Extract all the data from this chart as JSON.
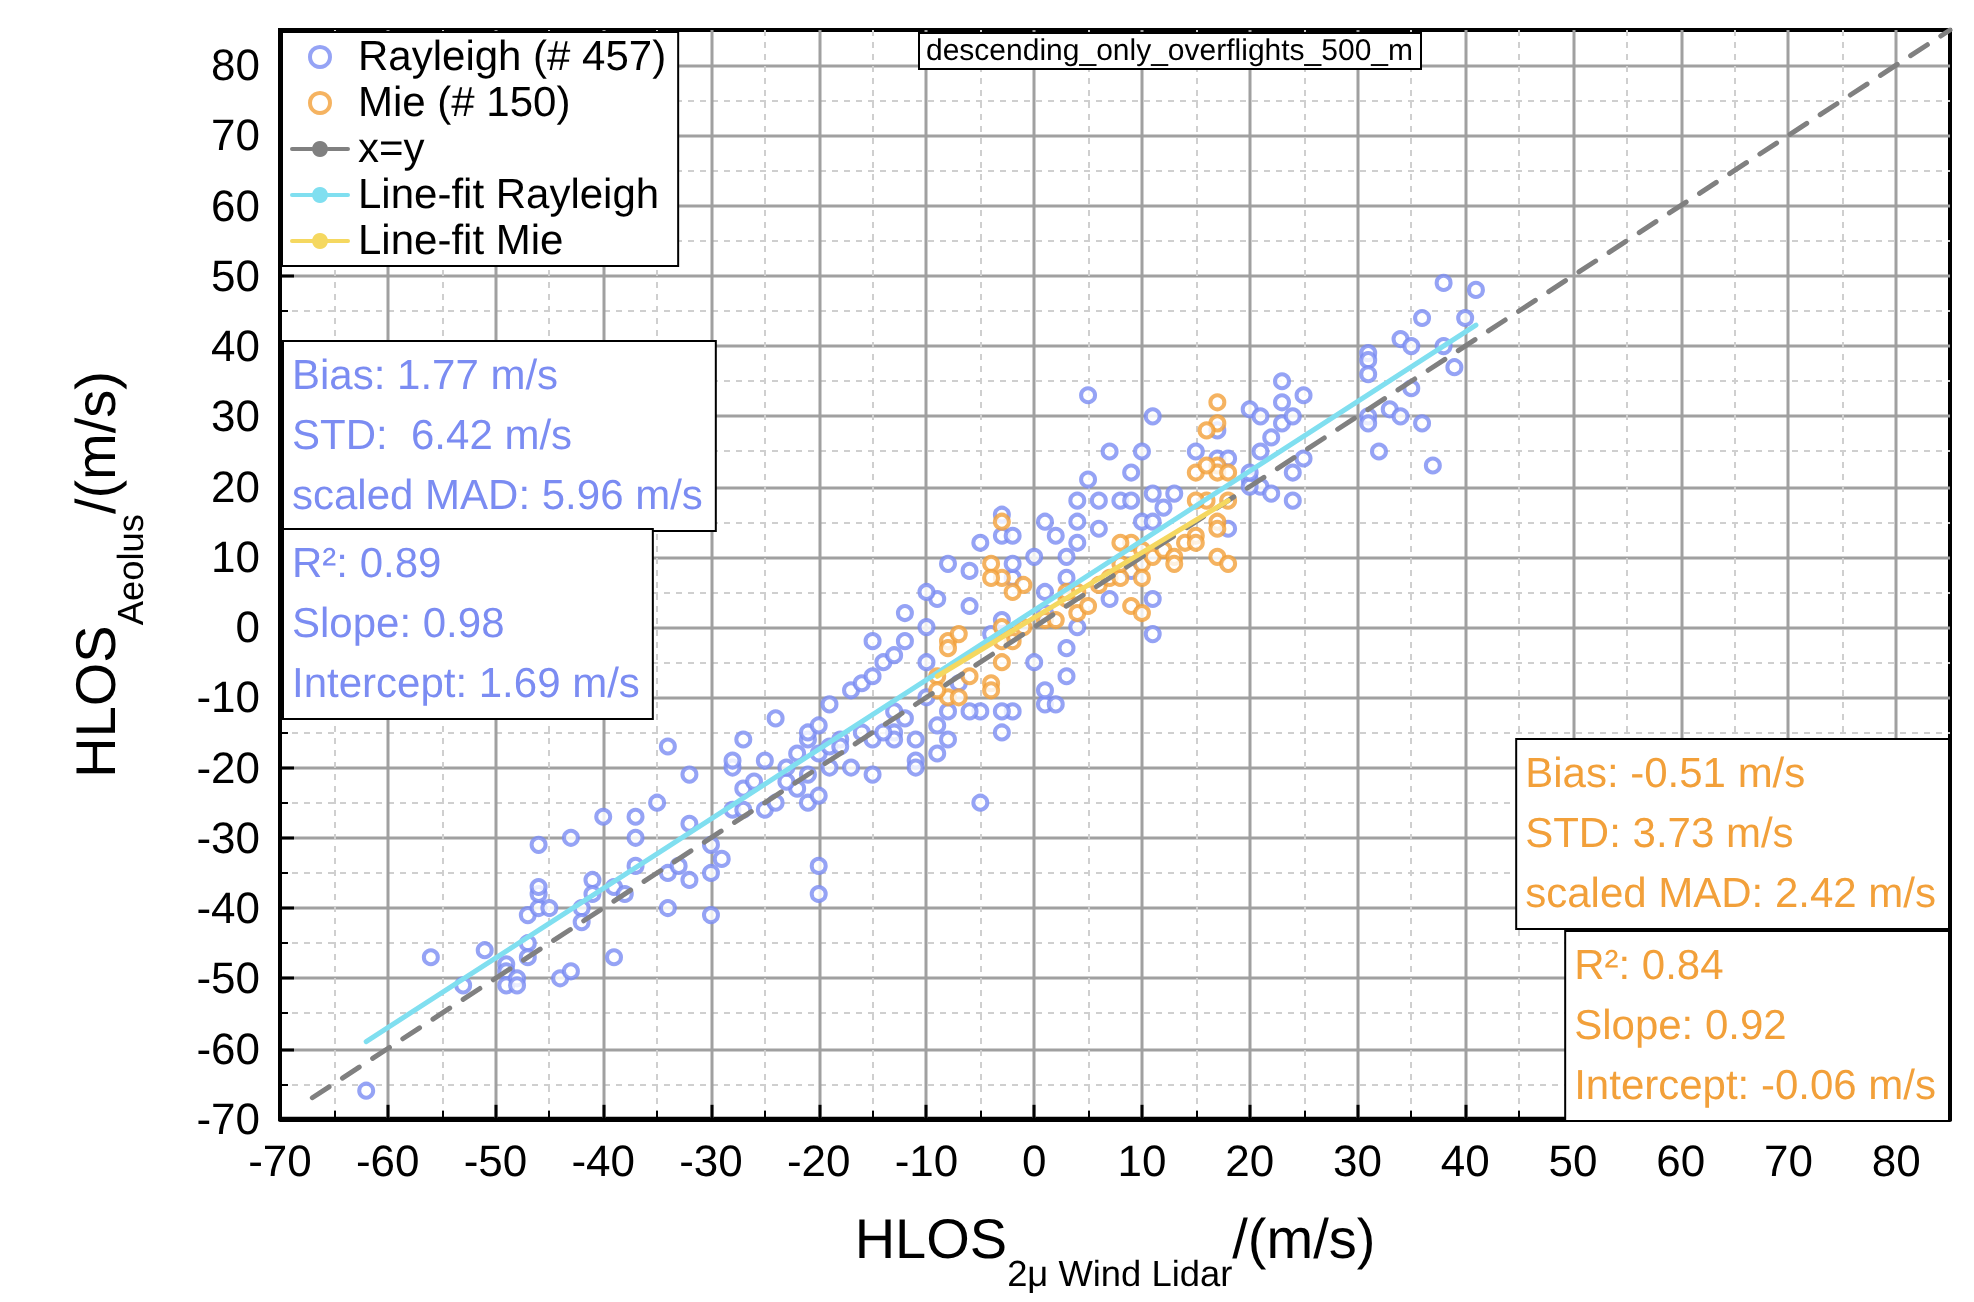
{
  "chart_data": {
    "type": "scatter",
    "title": "descending_only_overflights_500_m",
    "xlabel": "HLOS$_{2μ Wind Lidar}$/(m/s)",
    "ylabel": "HLOS$_{Aeolus}$/(m/s)",
    "xlim": [
      -70,
      85
    ],
    "ylim": [
      -70,
      85
    ],
    "xticks": [
      -70,
      -60,
      -50,
      -40,
      -30,
      -20,
      -10,
      0,
      10,
      20,
      30,
      40,
      50,
      60,
      70,
      80
    ],
    "yticks": [
      -70,
      -60,
      -50,
      -40,
      -30,
      -20,
      -10,
      0,
      10,
      20,
      30,
      40,
      50,
      60,
      70,
      80
    ],
    "grid": true,
    "legend": "top left",
    "marker": "circle",
    "series": [
      {
        "name": "Rayleigh (# 457)",
        "color": "#7b8cf2",
        "x": [
          -62,
          -56,
          -51,
          -53,
          -49,
          -49,
          -49,
          -48,
          -48,
          -47,
          -47,
          -47,
          -46,
          -46,
          -46,
          -45,
          -46,
          -43,
          -44,
          -43,
          -42,
          -42,
          -41,
          -41,
          -40,
          -39,
          -39,
          -38,
          -37,
          -37,
          -37,
          -35,
          -34,
          -34,
          -34,
          -33,
          -32,
          -32,
          -32,
          -30,
          -30,
          -30,
          -29,
          -28,
          -28,
          -27,
          -28,
          -27,
          -27,
          -26,
          -25,
          -24,
          -25,
          -24,
          -22,
          -23,
          -23,
          -22,
          -21,
          -21,
          -21,
          -21,
          -20,
          -20,
          -20,
          -20,
          -20,
          -19,
          -18,
          -17,
          -15,
          -16,
          -15,
          -13,
          -12,
          -19,
          -18,
          -11,
          -11,
          -9,
          -5,
          -3,
          1,
          2,
          1,
          3,
          3,
          -2,
          -3,
          -5,
          -6,
          -8,
          -9,
          -8,
          -11,
          -13,
          -14,
          -19,
          -17,
          -16,
          -15,
          -14,
          -13,
          -15,
          -12,
          -12,
          -10,
          -9,
          -10,
          -8,
          -6,
          -5,
          -3,
          -3,
          -2,
          1,
          2,
          4,
          6,
          4,
          8,
          9,
          7,
          10,
          9,
          5,
          11,
          13,
          15,
          17,
          18,
          20,
          21,
          22,
          24,
          18,
          11,
          11,
          7,
          4,
          1,
          0,
          1,
          -2,
          -3,
          -4,
          -6,
          -8,
          -10,
          -7,
          -13,
          -10,
          3,
          4,
          6,
          10,
          9,
          3,
          0,
          -2,
          38,
          41,
          36,
          40,
          34,
          35,
          38,
          39,
          31,
          31,
          31,
          35,
          31,
          31,
          33,
          34,
          36,
          32,
          37,
          23,
          25,
          23,
          20,
          21,
          23,
          24,
          22,
          21,
          25,
          24,
          20,
          20,
          5,
          11,
          12,
          17,
          11
        ],
        "values": [
          -66,
          -47,
          -46,
          -51,
          -48,
          -49,
          -51,
          -50,
          -51,
          -45,
          -47,
          -41,
          -40,
          -38,
          -37,
          -40,
          -31,
          -30,
          -50,
          -49,
          -40,
          -42,
          -36,
          -38,
          -27,
          -47,
          -37,
          -38,
          -34,
          -27,
          -30,
          -25,
          -17,
          -40,
          -35,
          -34,
          -21,
          -36,
          -28,
          -35,
          -31,
          -41,
          -33,
          -20,
          -19,
          -16,
          -26,
          -26,
          -23,
          -22,
          -19,
          -13,
          -26,
          -25,
          -23,
          -22,
          -20,
          -18,
          -25,
          -21,
          -16,
          -15,
          -34,
          -38,
          -24,
          -14,
          -18,
          -20,
          -16,
          -20,
          -21,
          -15,
          -16,
          -15,
          -13,
          -17,
          -17,
          -19,
          -20,
          -18,
          -25,
          -15,
          -11,
          -11,
          -9,
          -7,
          -3,
          -12,
          -12,
          -12,
          -12,
          -16,
          -14,
          -12,
          -16,
          -16,
          -15,
          -11,
          -9,
          -8,
          -7,
          -5,
          -4,
          -2,
          -2,
          2,
          0,
          4,
          5,
          9,
          8,
          12,
          16,
          13,
          13,
          15,
          13,
          15,
          18,
          18,
          18,
          18,
          25,
          25,
          22,
          21,
          19,
          19,
          25,
          24,
          24,
          21,
          20,
          19,
          18,
          14,
          -1,
          4,
          4,
          0,
          2,
          -5,
          5,
          7,
          1,
          -1,
          3,
          null,
          -5,
          -8,
          -12,
          -10,
          10,
          12,
          14,
          15,
          8,
          7,
          10,
          9,
          49,
          48,
          44,
          44,
          41,
          40,
          40,
          37,
          39,
          38,
          36,
          34,
          30,
          29,
          31,
          30,
          29,
          25,
          23,
          35,
          33,
          32,
          31,
          30,
          29,
          30,
          27,
          25,
          24,
          22,
          20,
          22,
          33,
          30,
          17,
          28,
          15
        ]
      },
      {
        "name": "Mie (# 150)",
        "color": "#f2a03a",
        "x": [
          -3,
          -4,
          -3,
          -4,
          -1,
          -2,
          -8,
          -8,
          -7,
          -9,
          -8,
          -7,
          -9,
          -6,
          -4,
          -4,
          -3,
          -2,
          -3,
          -1,
          -3,
          1,
          2,
          3,
          4,
          5,
          4,
          6,
          7,
          8,
          8,
          9,
          10,
          10,
          11,
          12,
          13,
          14,
          15,
          17,
          17,
          16,
          15,
          17,
          17,
          18,
          17,
          9,
          10,
          3,
          17,
          17,
          16,
          16,
          18,
          15,
          18,
          15,
          13,
          10,
          8
        ],
        "values": [
          15,
          9,
          7,
          7,
          6,
          5,
          -2,
          -3,
          -1,
          -7,
          -10,
          -10,
          -9,
          -7,
          -8,
          -9,
          -5,
          -2,
          -2,
          0,
          0,
          1,
          1,
          4,
          2,
          3,
          5,
          6,
          7,
          7,
          9,
          12,
          11,
          9,
          10,
          11,
          10,
          12,
          13,
          15,
          14,
          18,
          22,
          23,
          22,
          18,
          10,
          3,
          2,
          5,
          32,
          29,
          28,
          23,
          22,
          18,
          9,
          12,
          9,
          7,
          12
        ]
      },
      {
        "name": "x=y",
        "type": "line",
        "color": "#808080",
        "line_style": "dashed",
        "marker": "none",
        "x": [
          -67,
          85
        ],
        "values": [
          -67,
          85
        ]
      },
      {
        "name": "Line-fit Rayleigh",
        "type": "line",
        "color": "#80dff0",
        "marker": "none",
        "x": [
          -62,
          41
        ],
        "values": [
          -59,
          43
        ]
      },
      {
        "name": "Line-fit Mie",
        "type": "line",
        "color": "#f5d860",
        "marker": "none",
        "x": [
          -9,
          18
        ],
        "values": [
          -7,
          18
        ]
      }
    ],
    "annotations": [
      "Bias: 1.77 m/s\nSTD:  6.42 m/s\nscaled MAD: 5.96 m/s",
      "R²: 0.89\nSlope: 0.98\nIntercept: 1.69 m/s",
      "Bias: -0.51 m/s\nSTD: 3.73 m/s\nscaled MAD: 2.42 m/s",
      "R²: 0.84\nSlope: 0.92\nIntercept: -0.06 m/s"
    ]
  }
}
